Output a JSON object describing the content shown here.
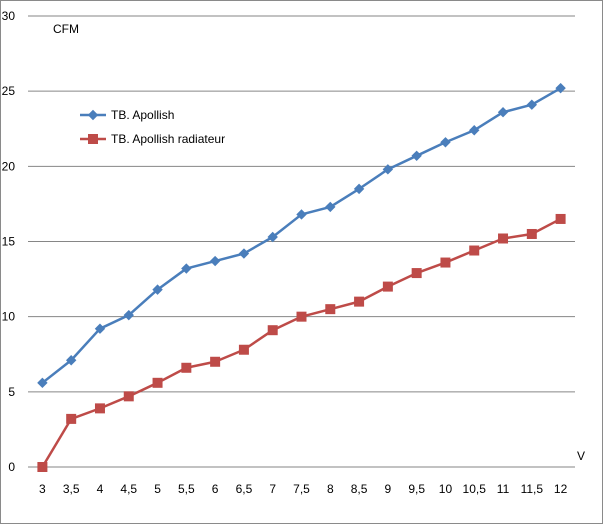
{
  "chart_data": {
    "type": "line",
    "ylabel": "CFM",
    "xlabel": "V",
    "categories": [
      "3",
      "3,5",
      "4",
      "4,5",
      "5",
      "5,5",
      "6",
      "6,5",
      "7",
      "7,5",
      "8",
      "8,5",
      "9",
      "9,5",
      "10",
      "10,5",
      "11",
      "11,5",
      "12"
    ],
    "ylim": [
      0,
      30
    ],
    "yticks": [
      "0",
      "5",
      "10",
      "15",
      "20",
      "25",
      "30"
    ],
    "grid": "horizontal",
    "legend_position": "top-left",
    "series": [
      {
        "name": "TB. Apollish",
        "color": "#4a7ebb",
        "marker": "diamond",
        "values": [
          5.6,
          7.1,
          9.2,
          10.1,
          11.8,
          13.2,
          13.7,
          14.2,
          15.3,
          16.8,
          17.3,
          18.5,
          19.8,
          20.7,
          21.6,
          22.4,
          23.6,
          24.1,
          25.2
        ]
      },
      {
        "name": "TB. Apollish radiateur",
        "color": "#be4b48",
        "marker": "square",
        "values": [
          0.0,
          3.2,
          3.9,
          4.7,
          5.6,
          6.6,
          7.0,
          7.8,
          9.1,
          10.0,
          10.5,
          11.0,
          12.0,
          12.9,
          13.6,
          14.4,
          15.2,
          15.5,
          16.5
        ]
      }
    ]
  }
}
